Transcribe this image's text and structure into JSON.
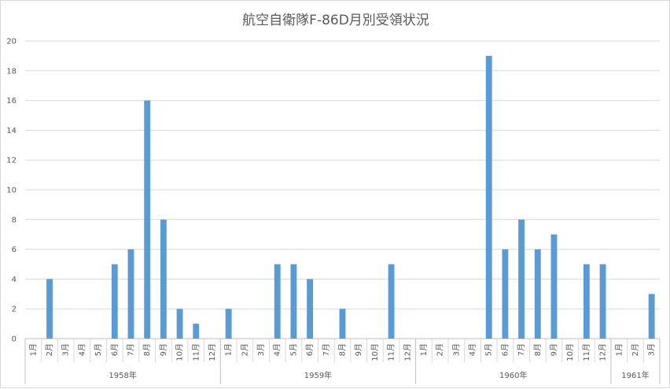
{
  "chart_data": {
    "type": "bar",
    "title": "航空自衛隊F-86D月別受領状況",
    "xlabel": "",
    "ylabel": "",
    "ylim": [
      0,
      20
    ],
    "yticks": [
      0,
      2,
      4,
      6,
      8,
      10,
      12,
      14,
      16,
      18,
      20
    ],
    "grid": true,
    "legend": "none",
    "bar_color": "#5b9bd5",
    "groups": [
      {
        "year": "1958年",
        "months": [
          "1月",
          "2月",
          "3月",
          "4月",
          "5月",
          "6月",
          "7月",
          "8月",
          "9月",
          "10月",
          "11月",
          "12月"
        ],
        "values": [
          0,
          4,
          0,
          0,
          0,
          5,
          6,
          16,
          8,
          2,
          1,
          0
        ]
      },
      {
        "year": "1959年",
        "months": [
          "1月",
          "2月",
          "3月",
          "4月",
          "5月",
          "6月",
          "7月",
          "8月",
          "9月",
          "10月",
          "11月",
          "12月"
        ],
        "values": [
          2,
          0,
          0,
          5,
          5,
          4,
          0,
          2,
          0,
          0,
          5,
          0
        ]
      },
      {
        "year": "1960年",
        "months": [
          "1月",
          "2月",
          "3月",
          "4月",
          "5月",
          "6月",
          "7月",
          "8月",
          "9月",
          "10月",
          "11月",
          "12月"
        ],
        "values": [
          0,
          0,
          0,
          0,
          19,
          6,
          8,
          6,
          7,
          0,
          5,
          5
        ]
      },
      {
        "year": "1961年",
        "months": [
          "1月",
          "2月",
          "3月"
        ],
        "values": [
          0,
          0,
          3
        ]
      }
    ]
  }
}
